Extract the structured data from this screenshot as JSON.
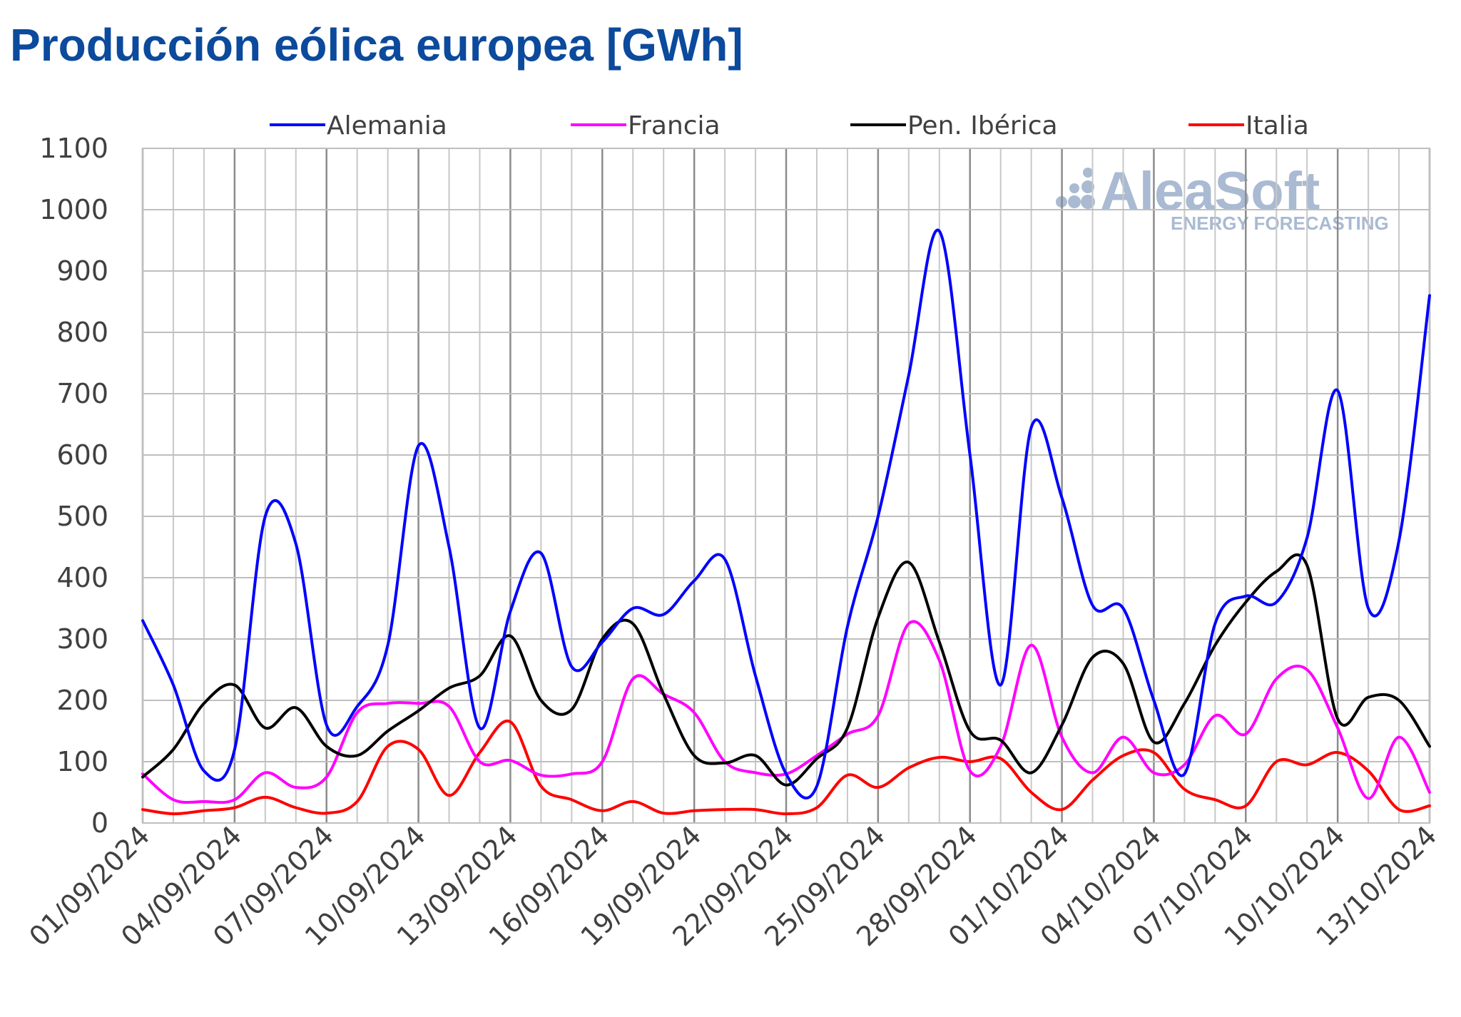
{
  "page": {
    "title": "Producción eólica europea [GWh]"
  },
  "logo": {
    "name": "AleaSoft",
    "tagline": "ENERGY FORECASTING"
  },
  "chart_data": {
    "type": "line",
    "title": "Producción eólica europea [GWh]",
    "xlabel": "",
    "ylabel": "",
    "ylim": [
      0,
      1100
    ],
    "yticks": [
      0,
      100,
      200,
      300,
      400,
      500,
      600,
      700,
      800,
      900,
      1000,
      1100
    ],
    "grid": true,
    "legend_position": "top",
    "x_tick_labels": [
      "01/09/2024",
      "04/09/2024",
      "07/09/2024",
      "10/09/2024",
      "13/09/2024",
      "16/09/2024",
      "19/09/2024",
      "22/09/2024",
      "25/09/2024",
      "28/09/2024",
      "01/10/2024",
      "04/10/2024",
      "07/10/2024",
      "10/10/2024",
      "13/10/2024"
    ],
    "x": [
      "01/09/2024",
      "02/09/2024",
      "03/09/2024",
      "04/09/2024",
      "05/09/2024",
      "06/09/2024",
      "07/09/2024",
      "08/09/2024",
      "09/09/2024",
      "10/09/2024",
      "11/09/2024",
      "12/09/2024",
      "13/09/2024",
      "14/09/2024",
      "15/09/2024",
      "16/09/2024",
      "17/09/2024",
      "18/09/2024",
      "19/09/2024",
      "20/09/2024",
      "21/09/2024",
      "22/09/2024",
      "23/09/2024",
      "24/09/2024",
      "25/09/2024",
      "26/09/2024",
      "27/09/2024",
      "28/09/2024",
      "29/09/2024",
      "30/09/2024",
      "01/10/2024",
      "02/10/2024",
      "03/10/2024",
      "04/10/2024",
      "05/10/2024",
      "06/10/2024",
      "07/10/2024",
      "08/10/2024",
      "09/10/2024",
      "10/10/2024",
      "11/10/2024",
      "12/10/2024",
      "13/10/2024"
    ],
    "series": [
      {
        "name": "Alemania",
        "color": "#0000ff",
        "values": [
          330,
          225,
          85,
          120,
          500,
          455,
          160,
          190,
          290,
          615,
          450,
          155,
          345,
          440,
          255,
          295,
          350,
          340,
          395,
          430,
          240,
          80,
          60,
          320,
          500,
          730,
          965,
          600,
          225,
          645,
          530,
          355,
          350,
          200,
          80,
          325,
          370,
          360,
          465,
          705,
          350,
          460,
          860
        ]
      },
      {
        "name": "Francia",
        "color": "#ff00ff",
        "values": [
          80,
          38,
          35,
          38,
          82,
          58,
          75,
          180,
          195,
          195,
          190,
          100,
          102,
          78,
          80,
          100,
          235,
          210,
          180,
          100,
          82,
          80,
          110,
          145,
          175,
          325,
          265,
          85,
          125,
          290,
          140,
          82,
          140,
          82,
          95,
          175,
          145,
          235,
          250,
          155,
          40,
          140,
          50
        ]
      },
      {
        "name": "Pen. Ibérica",
        "color": "#000000",
        "values": [
          75,
          120,
          195,
          225,
          155,
          188,
          125,
          110,
          150,
          183,
          220,
          240,
          305,
          200,
          185,
          300,
          325,
          210,
          110,
          98,
          110,
          62,
          105,
          155,
          335,
          425,
          295,
          150,
          135,
          82,
          160,
          270,
          260,
          132,
          195,
          290,
          360,
          410,
          420,
          170,
          205,
          200,
          125
        ]
      },
      {
        "name": "Italia",
        "color": "#ff0000",
        "values": [
          22,
          15,
          20,
          25,
          42,
          25,
          16,
          35,
          125,
          120,
          45,
          115,
          165,
          60,
          38,
          20,
          35,
          16,
          20,
          22,
          22,
          15,
          25,
          78,
          58,
          90,
          107,
          100,
          105,
          50,
          22,
          70,
          110,
          115,
          55,
          38,
          28,
          100,
          95,
          115,
          85,
          22,
          28
        ]
      }
    ]
  }
}
